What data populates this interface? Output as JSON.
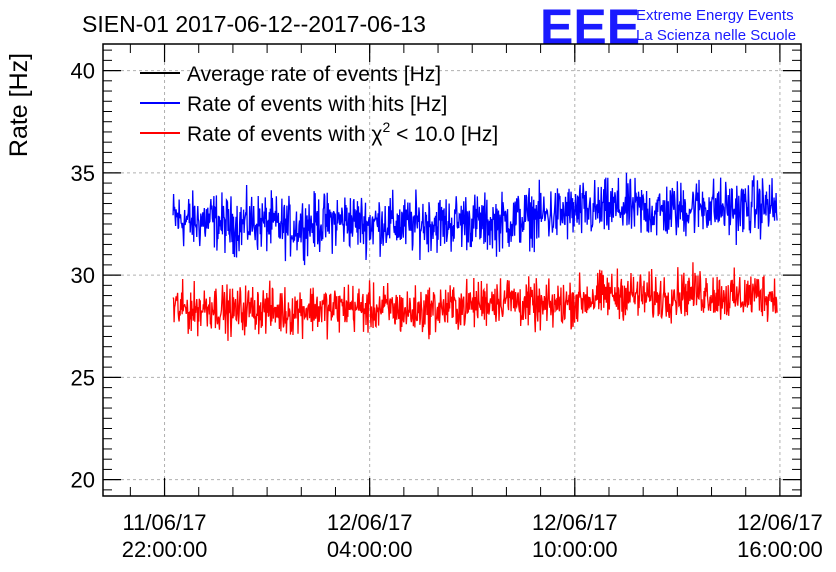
{
  "chart_data": {
    "type": "line",
    "title": "SIEN-01 2017-06-12--2017-06-13",
    "ylabel": "Rate [Hz]",
    "xlabel": "",
    "ylim": [
      19.2,
      41.3
    ],
    "yticks": [
      20,
      25,
      30,
      35,
      40
    ],
    "x_axis": {
      "type": "datetime",
      "range": [
        "2017-06-11 20:12",
        "2017-06-12 16:37"
      ],
      "ticks": [
        {
          "t": "2017-06-11 22:00",
          "label_date": "11/06/17",
          "label_time": "22:00:00"
        },
        {
          "t": "2017-06-12 04:00",
          "label_date": "12/06/17",
          "label_time": "04:00:00"
        },
        {
          "t": "2017-06-12 10:00",
          "label_date": "12/06/17",
          "label_time": "10:00:00"
        },
        {
          "t": "2017-06-12 16:00",
          "label_date": "12/06/17",
          "label_time": "16:00:00"
        }
      ]
    },
    "grid": true,
    "legend_position": "top-left",
    "series": [
      {
        "name": "Average rate of events [Hz]",
        "color": "#000000",
        "values": []
      },
      {
        "name": "Rate of events with hits [Hz]",
        "color": "#0000ff",
        "t_start": "2017-06-11 22:15",
        "t_end": "2017-06-12 15:55",
        "values": [
          32.8,
          32.6,
          32.7,
          32.4,
          32.6,
          32.5,
          32.3,
          32.5,
          32.6,
          32.7,
          32.5,
          32.6,
          32.4,
          32.6,
          32.5,
          32.7,
          32.5,
          32.6,
          32.8,
          32.9,
          33.0,
          33.1,
          33.2,
          33.3,
          33.2,
          33.1,
          33.2,
          33.4,
          33.3,
          33.2,
          33.4,
          33.3
        ],
        "noise_amplitude": 1.2
      },
      {
        "name": "Rate of events with χ² < 10.0 [Hz]",
        "color": "#ff0000",
        "t_start": "2017-06-11 22:15",
        "t_end": "2017-06-12 15:55",
        "values": [
          28.4,
          28.3,
          28.5,
          28.2,
          28.4,
          28.3,
          28.2,
          28.4,
          28.3,
          28.5,
          28.3,
          28.4,
          28.2,
          28.3,
          28.4,
          28.5,
          28.7,
          28.9,
          28.6,
          28.4,
          28.6,
          28.8,
          29.0,
          29.1,
          29.0,
          28.9,
          29.1,
          29.2,
          29.0,
          28.9,
          29.1,
          28.9
        ],
        "noise_amplitude": 1.0
      }
    ]
  },
  "legend": {
    "average": "Average rate of events [Hz]",
    "hits": "Rate of events with hits [Hz]",
    "chi_prefix": "Rate of events with χ",
    "chi_sup": "2",
    "chi_suffix": " < 10.0 [Hz]"
  },
  "logo": {
    "mark": "EEE",
    "line1": "Extreme Energy Events",
    "line2": "La Scienza nelle Scuole",
    "color": "#1a1aff"
  }
}
